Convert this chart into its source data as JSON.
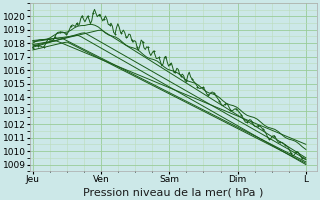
{
  "background_color": "#cce8e8",
  "plot_bg_color": "#cce8e8",
  "grid_major_color": "#99cc99",
  "grid_minor_color": "#bbddbb",
  "line_color": "#1a5c1a",
  "ylim": [
    1008.5,
    1021.0
  ],
  "yticks": [
    1009,
    1010,
    1011,
    1012,
    1013,
    1014,
    1015,
    1016,
    1017,
    1018,
    1019,
    1020
  ],
  "xlabel": "Pression niveau de la mer( hPa )",
  "xlabel_fontsize": 8,
  "tick_fontsize": 6.5,
  "day_labels": [
    "Jeu",
    "Ven",
    "Sam",
    "Dim",
    "L"
  ],
  "day_positions": [
    0,
    24,
    48,
    72,
    96
  ]
}
